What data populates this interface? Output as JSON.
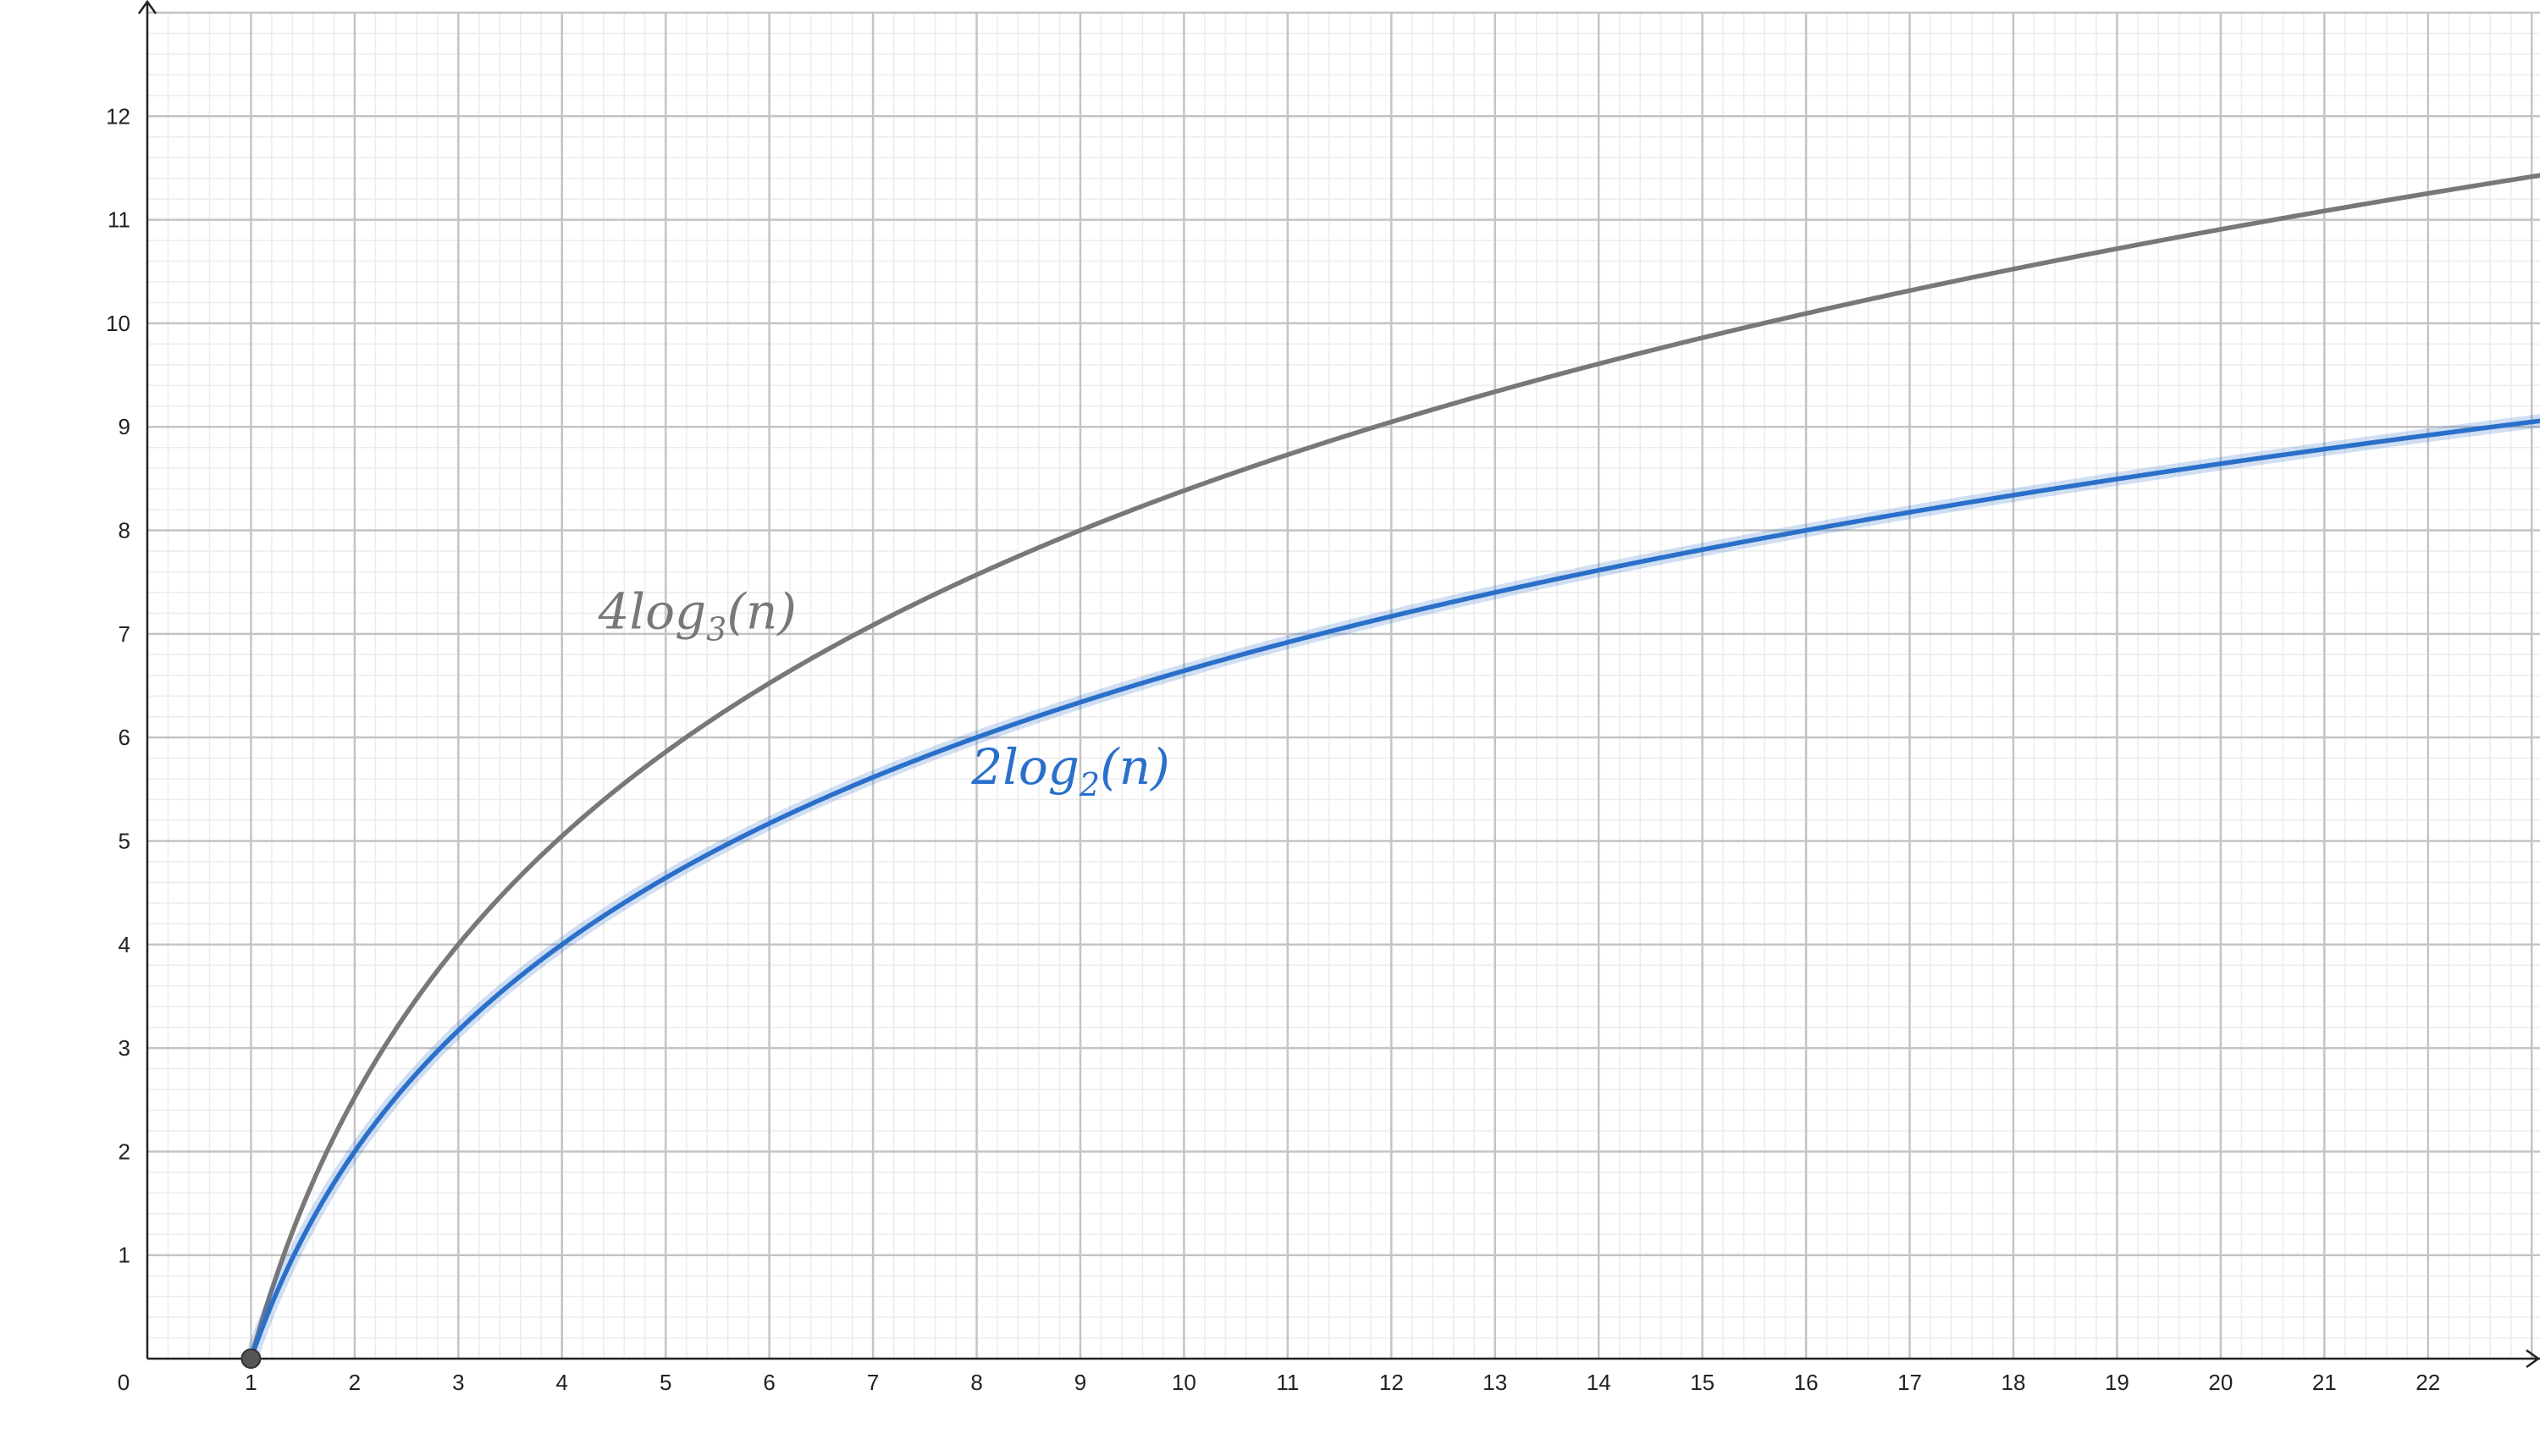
{
  "chart_data": {
    "type": "line",
    "title": "",
    "xlabel": "",
    "ylabel": "",
    "xlim": [
      0,
      23.08
    ],
    "ylim": [
      0,
      13
    ],
    "grid": true,
    "x_ticks": [
      0,
      1,
      2,
      3,
      4,
      5,
      6,
      7,
      8,
      9,
      10,
      11,
      12,
      13,
      14,
      15,
      16,
      17,
      18,
      19,
      20,
      21,
      22
    ],
    "y_ticks": [
      1,
      2,
      3,
      4,
      5,
      6,
      7,
      8,
      9,
      10,
      11,
      12
    ],
    "series": [
      {
        "name": "4log3(n)",
        "label_main": "4log",
        "label_sub": "3",
        "label_tail": "(n)",
        "color": "#787878",
        "function": "4*log(n)/log(3)",
        "x_domain": [
          1,
          23.08
        ],
        "label_anchor": [
          4.35,
          7.05
        ]
      },
      {
        "name": "2log2(n)",
        "label_main": "2log",
        "label_sub": "2",
        "label_tail": "(n)",
        "color": "#2a6fca",
        "function": "2*log(n)/log(2)",
        "x_domain": [
          1,
          23.08
        ],
        "label_anchor": [
          7.95,
          5.55
        ]
      }
    ],
    "points": [
      {
        "x": 1,
        "y": 0,
        "color": "#555555"
      }
    ]
  }
}
